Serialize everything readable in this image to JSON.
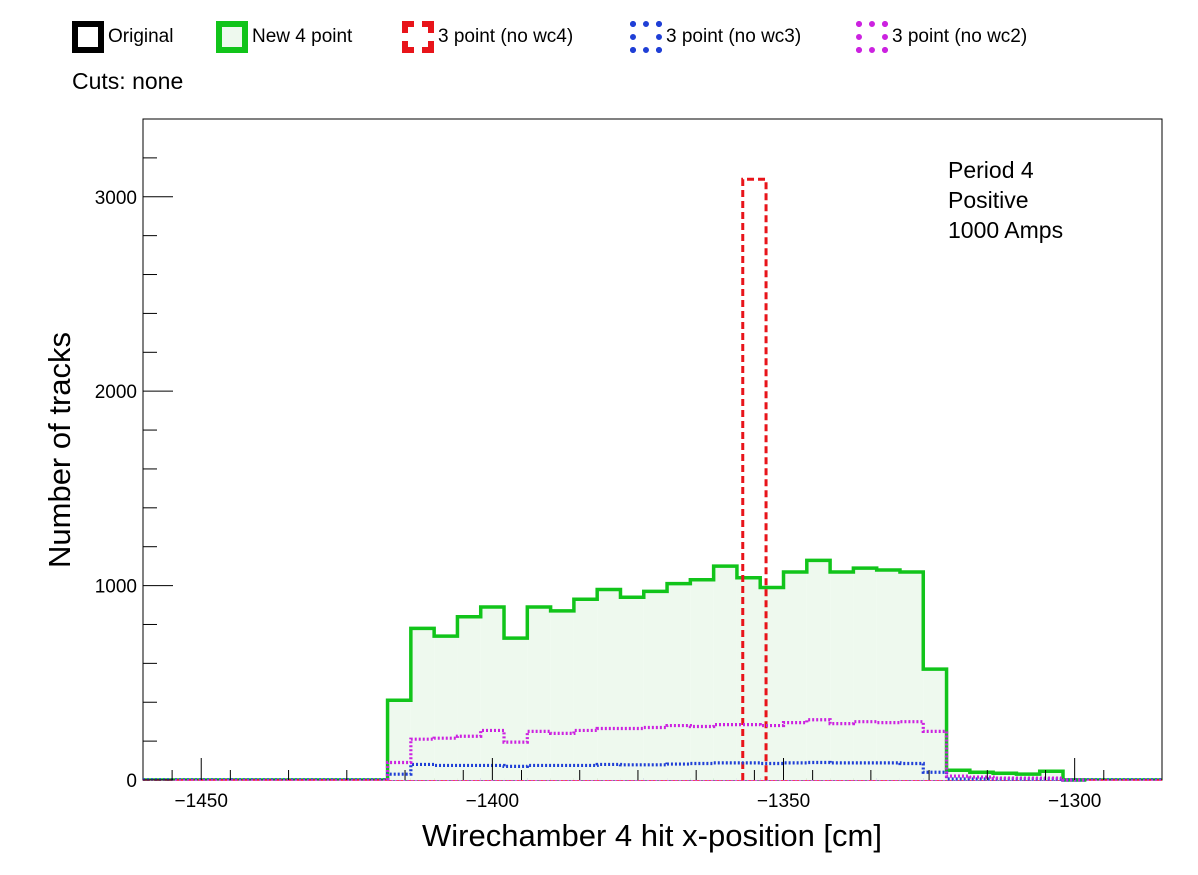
{
  "legend": {
    "items": [
      {
        "label": "Original",
        "color": "#000000",
        "style": "solid",
        "fill": "#ffffff"
      },
      {
        "label": "New 4 point",
        "color": "#11c41a",
        "style": "solid",
        "fill": "#eef9ee"
      },
      {
        "label": "3 point (no wc4)",
        "color": "#e8141a",
        "style": "dashed",
        "fill": "#ffffff"
      },
      {
        "label": "3 point (no wc3)",
        "color": "#1f3fd6",
        "style": "dotted",
        "fill": "#ffffff"
      },
      {
        "label": "3 point (no wc2)",
        "color": "#cc22e0",
        "style": "dotted",
        "fill": "#ffffff"
      }
    ]
  },
  "cuts_label": "Cuts: none",
  "info": {
    "line1": "Period 4",
    "line2": "Positive",
    "line3": "1000 Amps"
  },
  "chart_data": {
    "type": "histogram",
    "xlabel": "Wirechamber 4 hit x-position [cm]",
    "ylabel": "Number of tracks",
    "xlim": [
      -1460,
      -1285
    ],
    "ylim": [
      0,
      3400
    ],
    "xticks": [
      -1450,
      -1400,
      -1350,
      -1300
    ],
    "yticks": [
      0,
      1000,
      2000,
      3000
    ],
    "bin_width": 4,
    "series": [
      {
        "name": "New 4 point",
        "color": "#11c41a",
        "style": "solid",
        "fill": "#eef9ee",
        "start": -1418,
        "values": [
          410,
          780,
          740,
          840,
          890,
          730,
          890,
          870,
          930,
          980,
          940,
          970,
          1010,
          1030,
          1100,
          1040,
          990,
          1070,
          1130,
          1070,
          1090,
          1080,
          1070,
          570,
          50,
          40,
          35,
          30,
          45,
          0
        ]
      },
      {
        "name": "3 point (no wc4)",
        "color": "#e8141a",
        "style": "dashed",
        "fill": "none",
        "bars": [
          {
            "x0": -1357,
            "x1": -1353,
            "value": 3090
          }
        ]
      },
      {
        "name": "3 point (no wc3)",
        "color": "#1f3fd6",
        "style": "dotted",
        "fill": "none",
        "start": -1418,
        "values": [
          30,
          80,
          75,
          75,
          75,
          70,
          75,
          75,
          75,
          80,
          78,
          78,
          82,
          85,
          88,
          88,
          85,
          88,
          90,
          88,
          88,
          88,
          85,
          40,
          5,
          5,
          5,
          5,
          5,
          0
        ]
      },
      {
        "name": "3 point (no wc2)",
        "color": "#cc22e0",
        "style": "dotted",
        "fill": "none",
        "start": -1418,
        "values": [
          90,
          210,
          215,
          225,
          255,
          195,
          250,
          240,
          255,
          265,
          265,
          270,
          280,
          275,
          285,
          285,
          280,
          295,
          310,
          290,
          300,
          295,
          300,
          250,
          20,
          15,
          10,
          10,
          10,
          0
        ]
      }
    ]
  }
}
